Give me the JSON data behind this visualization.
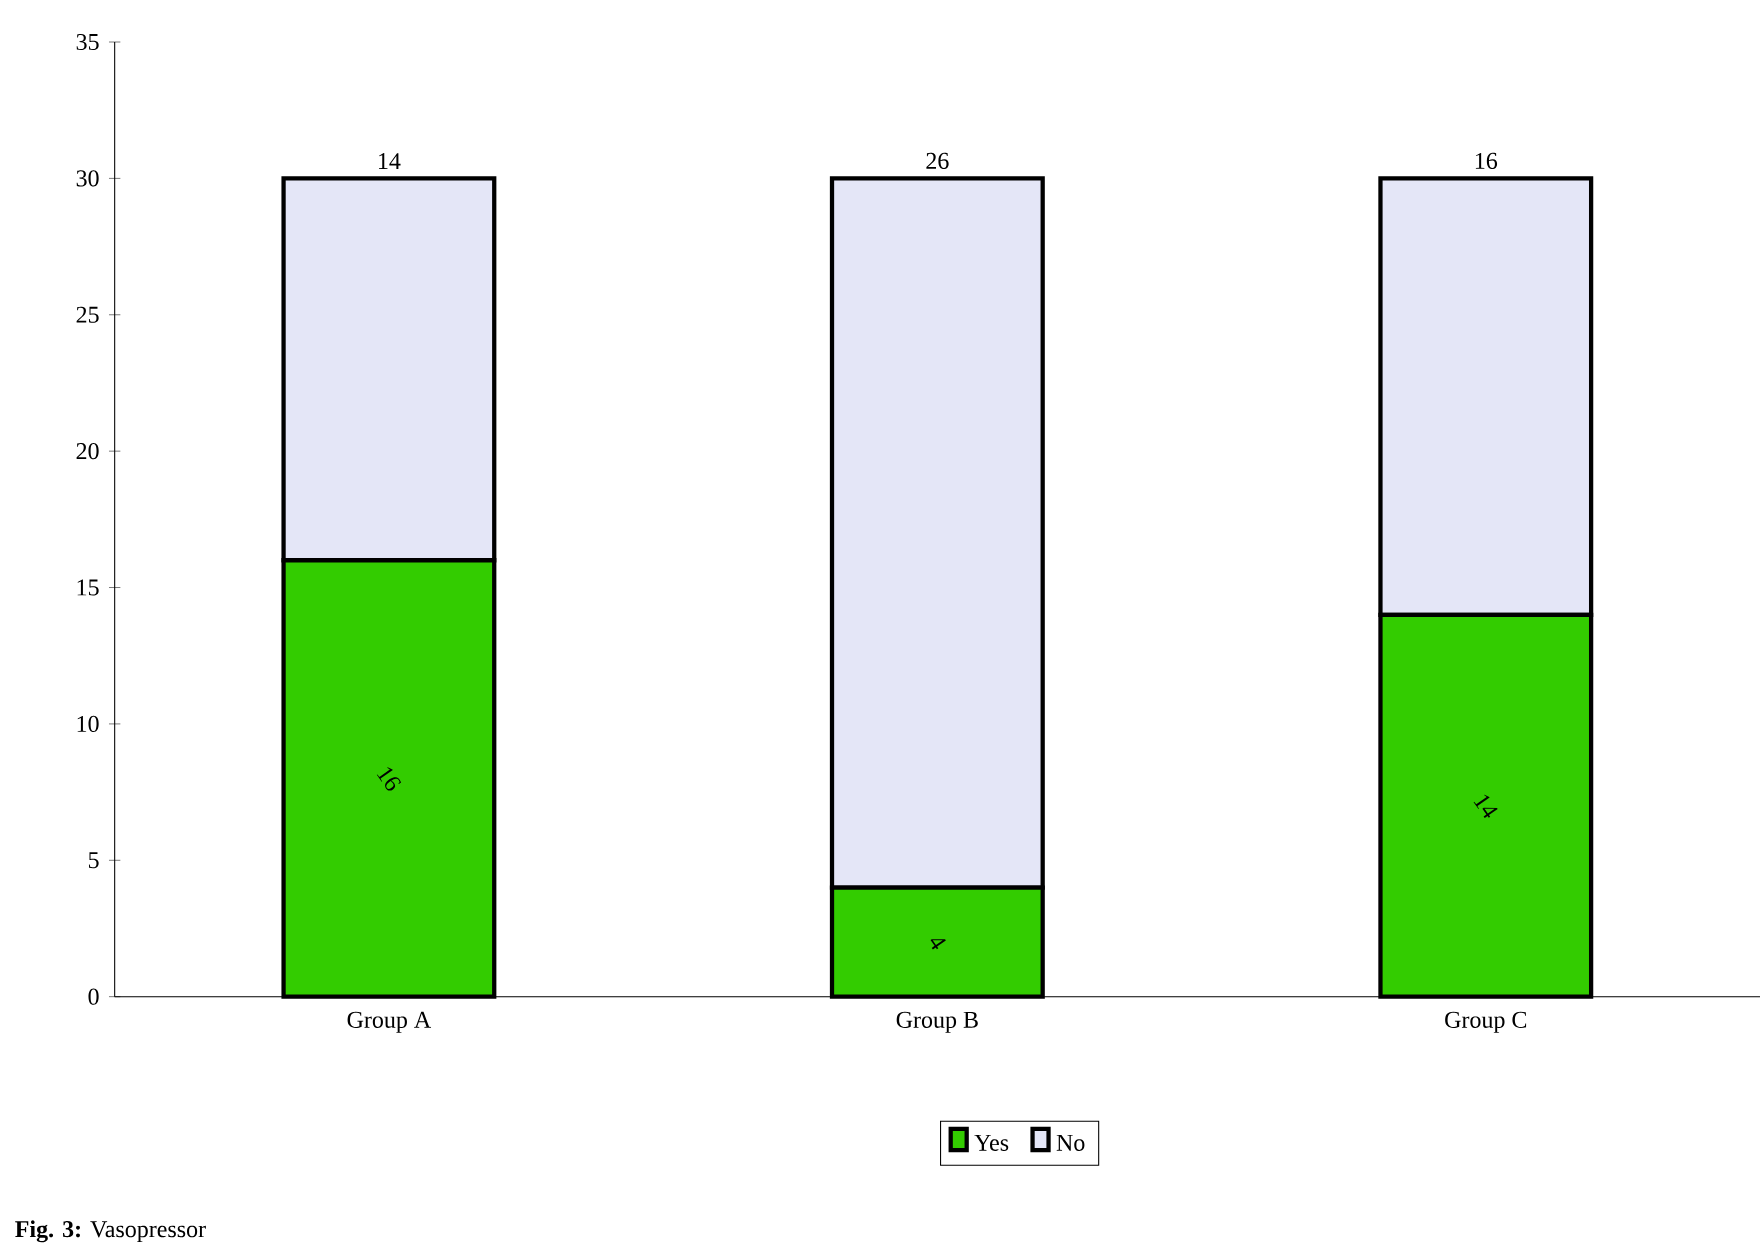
{
  "chart_data": {
    "type": "bar",
    "title": "**Fig. 3:** Vasopressor",
    "categories": [
      "Group A",
      "Group B",
      "Group C"
    ],
    "stacked": true,
    "series": [
      {
        "name": "Yes",
        "color": "#33cc00",
        "values": [
          16,
          4,
          14
        ]
      },
      {
        "name": "No",
        "color": "#e4e6f7",
        "values": [
          14,
          26,
          16
        ]
      }
    ],
    "ylim": [
      0,
      35
    ],
    "yticks": [
      0,
      5,
      10,
      15,
      20,
      25,
      30,
      35
    ],
    "data_labels": true,
    "legend": "bottom",
    "grid": false
  }
}
